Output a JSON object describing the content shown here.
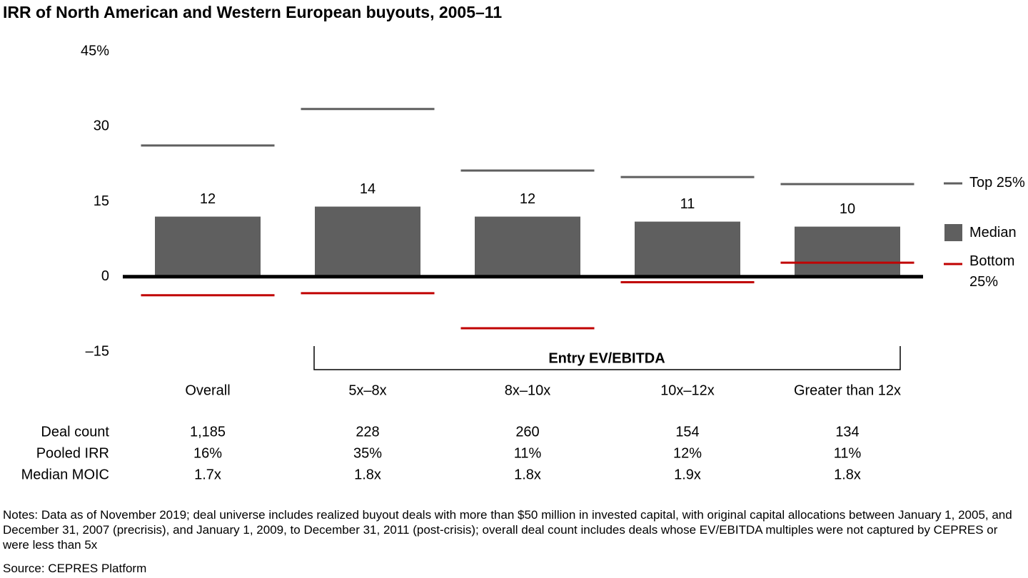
{
  "chart_data": {
    "type": "bar",
    "title": "IRR of North American and Western European buyouts, 2005–11",
    "categories": [
      "Overall",
      "5x–8x",
      "8x–10x",
      "10x–12x",
      "Greater than 12x"
    ],
    "series": [
      {
        "name": "Top 25%",
        "style": "dash",
        "color": "#5f5f5f",
        "values": [
          26.2,
          33.5,
          21.2,
          19.9,
          18.5
        ]
      },
      {
        "name": "Median",
        "style": "bar",
        "color": "#5f5f5f",
        "values": [
          12,
          14,
          12,
          11,
          10
        ]
      },
      {
        "name": "Bottom 25%",
        "style": "dash",
        "color": "#c00000",
        "values": [
          -3.7,
          -3.3,
          -10.3,
          -1.1,
          2.8
        ]
      }
    ],
    "ylim": [
      -15,
      45
    ],
    "yticks": [
      {
        "value": 45,
        "label": "45%"
      },
      30,
      15,
      0,
      {
        "value": -15,
        "label": "–15"
      }
    ],
    "bracket_label": "Entry EV/EBITDA",
    "table": {
      "rows": [
        {
          "label": "Deal count",
          "values": [
            "1,185",
            "228",
            "260",
            "154",
            "134"
          ]
        },
        {
          "label": "Pooled IRR",
          "values": [
            "16%",
            "35%",
            "11%",
            "12%",
            "11%"
          ]
        },
        {
          "label": "Median MOIC",
          "values": [
            "1.7x",
            "1.8x",
            "1.8x",
            "1.9x",
            "1.8x"
          ]
        }
      ]
    },
    "notes": "Notes: Data as of November 2019; deal universe includes realized buyout deals with more than $50 million in invested capital, with original capital allocations between January 1, 2005, and December 31, 2007 (precrisis), and January 1, 2009, to December 31, 2011 (post-crisis); overall deal count includes deals whose EV/EBITDA multiples were not captured by CEPRES or were less than 5x",
    "source": "Source: CEPRES Platform"
  }
}
